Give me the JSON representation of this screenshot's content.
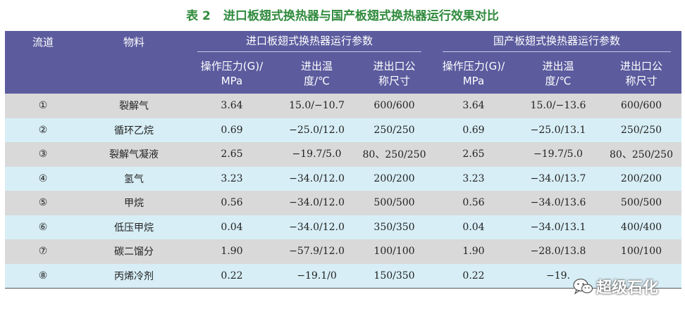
{
  "title": {
    "number": "表 2",
    "text": "进口板翅式换热器与国产板翅式换热器运行效果对比"
  },
  "header": {
    "col_flow": "流道",
    "col_material": "物料",
    "group_import": "进口板翅式换热器运行参数",
    "group_domestic": "国产板翅式换热器运行参数",
    "pressure_line1": "操作压力(G)/",
    "pressure_line2": "MPa",
    "temp_line1": "进出温",
    "temp_line2": "度/℃",
    "size_line1": "进出口公",
    "size_line2": "称尺寸"
  },
  "rows": [
    {
      "flow": "①",
      "material": "裂解气",
      "imp_p": "3.64",
      "imp_t": "15.0/−10.7",
      "imp_s": "600/600",
      "dom_p": "3.64",
      "dom_t": "15.0/−13.6",
      "dom_s": "600/600"
    },
    {
      "flow": "②",
      "material": "循环乙烷",
      "imp_p": "0.69",
      "imp_t": "−25.0/12.0",
      "imp_s": "250/250",
      "dom_p": "0.69",
      "dom_t": "−25.0/13.1",
      "dom_s": "250/250"
    },
    {
      "flow": "③",
      "material": "裂解气凝液",
      "imp_p": "2.65",
      "imp_t": "−19.7/5.0",
      "imp_s": "80、250/250",
      "dom_p": "2.65",
      "dom_t": "−19.7/5.0",
      "dom_s": "80、250/250"
    },
    {
      "flow": "④",
      "material": "氢气",
      "imp_p": "3.23",
      "imp_t": "−34.0/12.0",
      "imp_s": "200/200",
      "dom_p": "3.23",
      "dom_t": "−34.0/13.7",
      "dom_s": "200/200"
    },
    {
      "flow": "⑤",
      "material": "甲烷",
      "imp_p": "0.56",
      "imp_t": "−34.0/12.0",
      "imp_s": "500/500",
      "dom_p": "0.56",
      "dom_t": "−34.0/13.6",
      "dom_s": "500/500"
    },
    {
      "flow": "⑥",
      "material": "低压甲烷",
      "imp_p": "0.04",
      "imp_t": "−34.0/12.0",
      "imp_s": "350/350",
      "dom_p": "0.04",
      "dom_t": "−34.0/13.1",
      "dom_s": "400/400"
    },
    {
      "flow": "⑦",
      "material": "碳二馏分",
      "imp_p": "1.90",
      "imp_t": "−57.9/12.0",
      "imp_s": "100/100",
      "dom_p": "1.90",
      "dom_t": "−28.0/13.8",
      "dom_s": "100/100"
    },
    {
      "flow": "⑧",
      "material": "丙烯冷剂",
      "imp_p": "0.22",
      "imp_t": "−19.1/0",
      "imp_s": "150/350",
      "dom_p": "0.22",
      "dom_t": "−19.",
      "dom_s": ""
    }
  ],
  "watermark": {
    "text": "超级石化",
    "icon": "wechat-icon"
  }
}
